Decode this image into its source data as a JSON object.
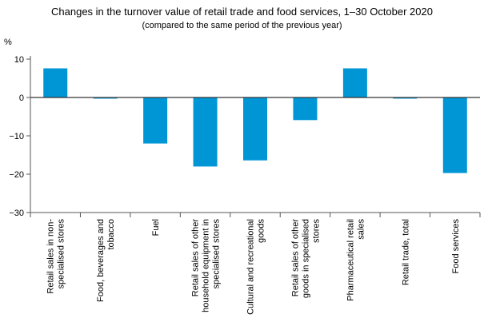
{
  "chart_data": {
    "type": "bar",
    "title": "Changes in the turnover value of retail trade and food services, 1–30 October 2020",
    "subtitle": "(compared to the same period of the previous year)",
    "ylabel": "%",
    "xlabel": "",
    "ylim": [
      -30,
      10
    ],
    "yticks": [
      10,
      0,
      -10,
      -20,
      -30
    ],
    "ytick_labels": [
      "10",
      "0",
      "−10",
      "−20",
      "−30"
    ],
    "grid": false,
    "legend": "none",
    "bar_color": "#0096d6",
    "categories": [
      [
        "Retail sales in non-",
        "specialised stores"
      ],
      [
        "Food, beverages and",
        "tobacco"
      ],
      [
        "Fuel"
      ],
      [
        "Retail sales of other",
        "household equipment in",
        "specialised stores"
      ],
      [
        "Cultural and recreational",
        "goods"
      ],
      [
        "Retail sales of other",
        "goods in specialised",
        "stores"
      ],
      [
        "Pharmaceutical retail",
        "sales"
      ],
      [
        "Retail trade, total"
      ],
      [
        "Food services"
      ]
    ],
    "values": [
      7.6,
      -0.3,
      -12.0,
      -18.0,
      -16.4,
      -5.9,
      7.6,
      -0.3,
      -19.7
    ]
  }
}
